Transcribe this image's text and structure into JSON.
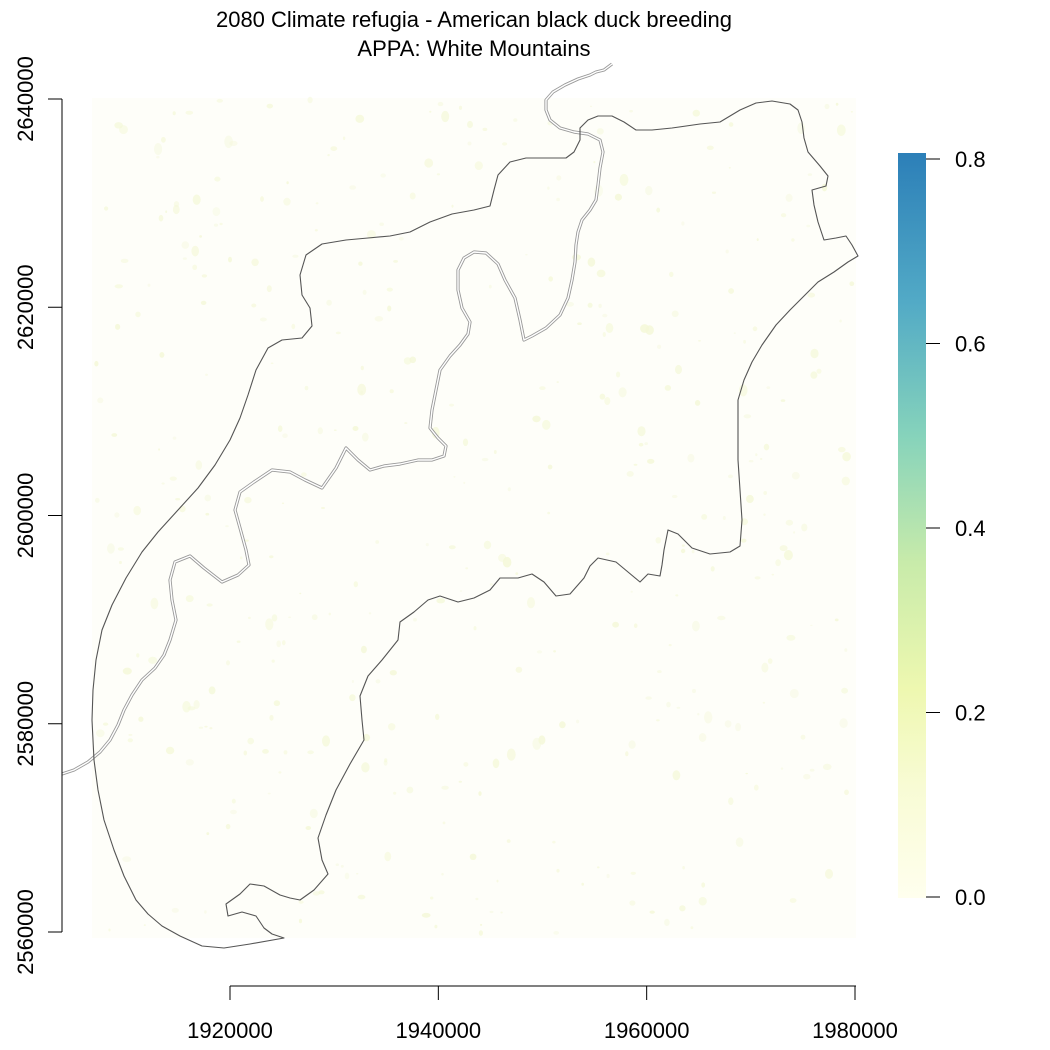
{
  "title": {
    "line1": "2080 Climate refugia - American black duck breeding",
    "line2": "APPA: White Mountains"
  },
  "x_axis": {
    "ticks": [
      "1920000",
      "1940000",
      "1960000",
      "1980000"
    ],
    "tick_values": [
      1920000,
      1940000,
      1960000,
      1980000
    ]
  },
  "y_axis": {
    "ticks": [
      "2560000",
      "2580000",
      "2600000",
      "2620000",
      "2640000"
    ],
    "tick_values": [
      2560000,
      2580000,
      2600000,
      2620000,
      2640000
    ]
  },
  "legend": {
    "ticks": [
      "0.0",
      "0.2",
      "0.4",
      "0.6",
      "0.8"
    ],
    "tick_values": [
      0.0,
      0.2,
      0.4,
      0.6,
      0.8
    ],
    "min": 0.0,
    "max": 0.8,
    "colors": [
      "#ffffe5",
      "#f7fcb9",
      "#d9f0a3",
      "#addd8e",
      "#7fcdbb",
      "#41b6c4",
      "#2c7fb8"
    ]
  },
  "colors": {
    "boundary": "#555555",
    "state_line": "#9a9a9a",
    "raster_speckle": "#f4f8d8"
  }
}
